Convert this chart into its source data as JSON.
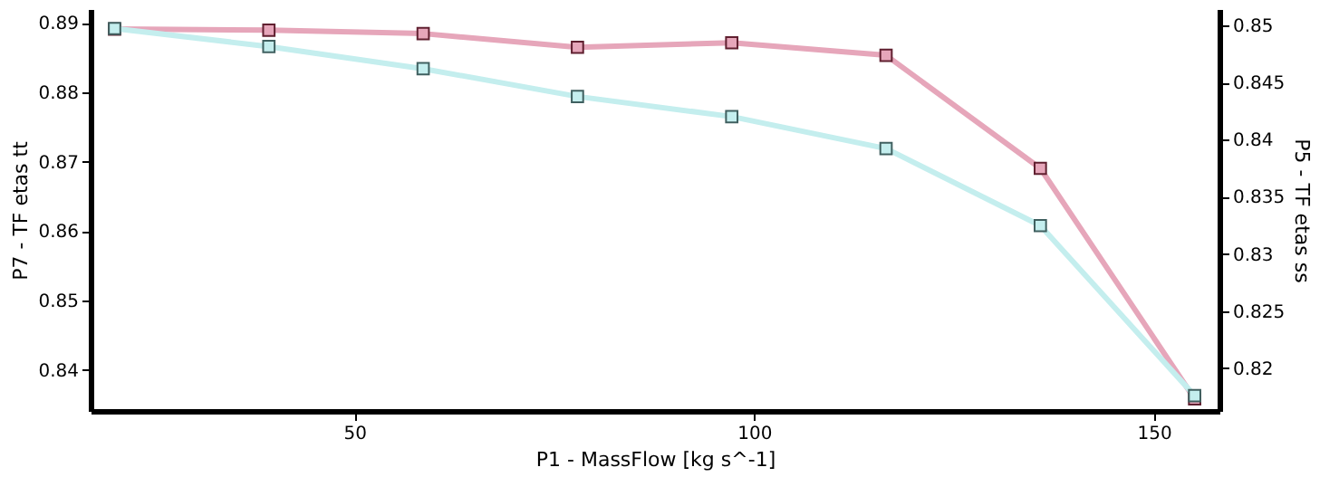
{
  "chart_data": {
    "type": "line",
    "xlabel": "P1 - MassFlow  [kg s^-1]",
    "ylabel": "P7 - TF etas tt",
    "y2label": "P5 - TF etas ss",
    "x": [
      20,
      39.3,
      58.6,
      77.9,
      97.2,
      116.5,
      135.8,
      155.1
    ],
    "series": [
      {
        "color": "#c4eeee",
        "values": [
          0.8892,
          0.8866,
          0.8834,
          0.8794,
          0.8765,
          0.8719,
          0.8608,
          0.8363
        ]
      },
      {
        "color": "#e6a6ba",
        "axis": "y2",
        "values": [
          0.8497,
          0.8496,
          0.8493,
          0.8481,
          0.8485,
          0.8474,
          0.8375,
          0.8173
        ]
      }
    ],
    "xlim": [
      17,
      158.2
    ],
    "xticks": [
      50,
      100,
      150
    ],
    "ylim": [
      0.8341,
      0.892
    ],
    "yticks": [
      0.84,
      0.85,
      0.86,
      0.87,
      0.88,
      0.89
    ],
    "y2lim": [
      0.81625,
      0.85145
    ],
    "y2ticks": [
      0.82,
      0.825,
      0.83,
      0.835,
      0.84,
      0.845,
      0.85
    ],
    "marker": "square",
    "line_style": "solid",
    "grid": false
  }
}
